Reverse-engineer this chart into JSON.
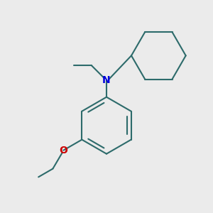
{
  "bg_color": "#ebebeb",
  "bond_color": "#2d6b6b",
  "n_color": "#0000dd",
  "o_color": "#cc0000",
  "line_width": 1.5,
  "fig_size": [
    3.0,
    3.0
  ],
  "dpi": 100
}
